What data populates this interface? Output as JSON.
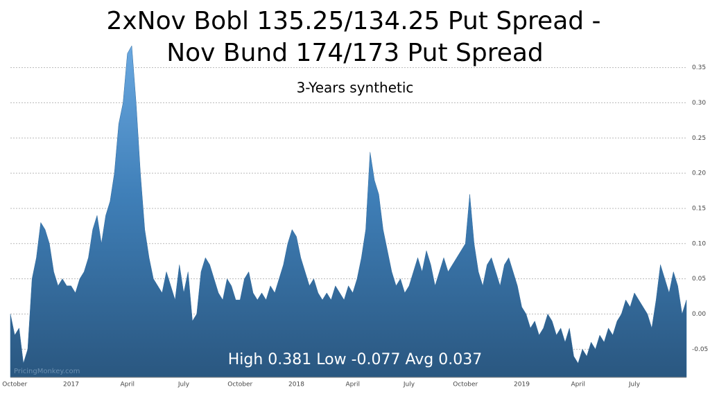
{
  "chart_data": {
    "type": "area",
    "title": [
      "2xNov Bobl 135.25/134.25 Put Spread -",
      "Nov Bund 174/173 Put Spread"
    ],
    "subtitle": "3-Years synthetic",
    "annotation": "High 0.381 Low -0.077 Avg 0.037",
    "watermark": "PricingMonkey.com",
    "categories": [
      null,
      "October",
      null,
      null,
      null,
      null,
      null,
      null,
      null,
      null,
      null,
      null,
      null,
      null,
      "2017",
      null,
      null,
      null,
      null,
      null,
      null,
      null,
      null,
      null,
      null,
      null,
      null,
      "April",
      null,
      null,
      null,
      null,
      null,
      null,
      null,
      null,
      null,
      null,
      null,
      null,
      "July",
      null,
      null,
      null,
      null,
      null,
      null,
      null,
      null,
      null,
      null,
      null,
      null,
      "October",
      null,
      null,
      null,
      null,
      null,
      null,
      null,
      null,
      null,
      null,
      null,
      null,
      "2018",
      null,
      null,
      null,
      null,
      null,
      null,
      null,
      null,
      null,
      null,
      null,
      null,
      "April",
      null,
      null,
      null,
      null,
      null,
      null,
      null,
      null,
      null,
      null,
      null,
      null,
      "July",
      null,
      null,
      null,
      null,
      null,
      null,
      null,
      null,
      null,
      null,
      null,
      null,
      "October",
      null,
      null,
      null,
      null,
      null,
      null,
      null,
      null,
      null,
      null,
      null,
      null,
      "2019",
      null,
      null,
      null,
      null,
      null,
      null,
      null,
      null,
      null,
      null,
      null,
      null,
      "April",
      null,
      null,
      null,
      null,
      null,
      null,
      null,
      null,
      null,
      null,
      null,
      null,
      "July",
      null,
      null,
      null,
      null,
      null,
      null,
      null,
      null,
      null,
      null,
      null,
      null
    ],
    "values": [
      0.0,
      -0.03,
      -0.02,
      -0.07,
      -0.05,
      0.05,
      0.08,
      0.13,
      0.12,
      0.1,
      0.06,
      0.04,
      0.05,
      0.04,
      0.04,
      0.03,
      0.05,
      0.06,
      0.08,
      0.12,
      0.14,
      0.1,
      0.14,
      0.16,
      0.2,
      0.27,
      0.3,
      0.37,
      0.381,
      0.3,
      0.2,
      0.12,
      0.08,
      0.05,
      0.04,
      0.03,
      0.06,
      0.04,
      0.02,
      0.07,
      0.03,
      0.06,
      -0.01,
      0.0,
      0.06,
      0.08,
      0.07,
      0.05,
      0.03,
      0.02,
      0.05,
      0.04,
      0.02,
      0.02,
      0.05,
      0.06,
      0.03,
      0.02,
      0.03,
      0.02,
      0.04,
      0.03,
      0.05,
      0.07,
      0.1,
      0.12,
      0.11,
      0.08,
      0.06,
      0.04,
      0.05,
      0.03,
      0.02,
      0.03,
      0.02,
      0.04,
      0.03,
      0.02,
      0.04,
      0.03,
      0.05,
      0.08,
      0.12,
      0.23,
      0.19,
      0.17,
      0.12,
      0.09,
      0.06,
      0.04,
      0.05,
      0.03,
      0.04,
      0.06,
      0.08,
      0.06,
      0.09,
      0.07,
      0.04,
      0.06,
      0.08,
      0.06,
      0.07,
      0.08,
      0.09,
      0.1,
      0.17,
      0.1,
      0.06,
      0.04,
      0.07,
      0.08,
      0.06,
      0.04,
      0.07,
      0.08,
      0.06,
      0.04,
      0.01,
      0.0,
      -0.02,
      -0.01,
      -0.03,
      -0.02,
      0.0,
      -0.01,
      -0.03,
      -0.02,
      -0.04,
      -0.02,
      -0.06,
      -0.07,
      -0.05,
      -0.06,
      -0.04,
      -0.05,
      -0.03,
      -0.04,
      -0.02,
      -0.03,
      -0.01,
      0.0,
      0.02,
      0.01,
      0.03,
      0.02,
      0.01,
      0.0,
      -0.02,
      0.02,
      0.07,
      0.05,
      0.03,
      0.06,
      0.04,
      0.0,
      0.02
    ],
    "color": "#2e6a9e",
    "ylim": [
      -0.09,
      0.385
    ],
    "yticks": [
      {
        "value": -0.05,
        "label": "-0.05"
      },
      {
        "value": 0,
        "label": "0.00"
      },
      {
        "value": 0.05,
        "label": "0.05"
      },
      {
        "value": 0.1,
        "label": "0.10"
      },
      {
        "value": 0.15,
        "label": "0.15"
      },
      {
        "value": 0.2,
        "label": "0.20"
      },
      {
        "value": 0.25,
        "label": "0.25"
      },
      {
        "value": 0.3,
        "label": "0.30"
      },
      {
        "value": 0.35,
        "label": "0.35"
      }
    ],
    "grid": true
  }
}
